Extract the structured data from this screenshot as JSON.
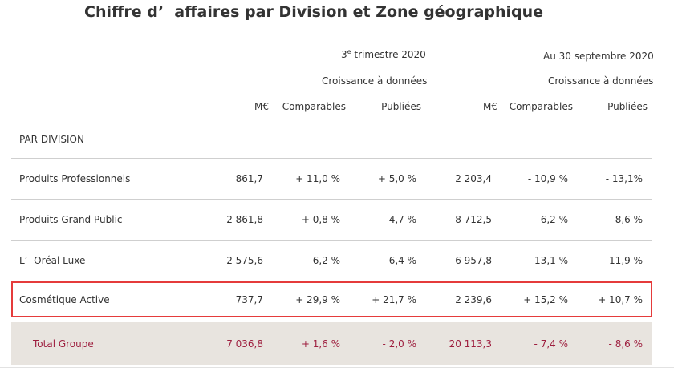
{
  "title": "Chiffre d’  affaires par Division et Zone géographique",
  "headers": {
    "period1": "trimestre 2020",
    "period1_num": "3",
    "period1_sup": "e",
    "period2": "Au 30 septembre 2020",
    "growth_label_1": "Croissance à données",
    "growth_label_2": "Croissance à données",
    "cols": [
      "M€",
      "Comparables",
      "Publiées",
      "M€",
      "Comparables",
      "Publiées"
    ]
  },
  "section": "PAR DIVISION",
  "rows": [
    {
      "label": "Produits Professionnels",
      "v": [
        "861,7",
        "+ 11,0 %",
        "+ 5,0 %",
        "2 203,4",
        "- 10,9 %",
        "- 13,1%"
      ]
    },
    {
      "label": "Produits Grand Public",
      "v": [
        "2 861,8",
        "+ 0,8 %",
        "- 4,7 %",
        "8 712,5",
        "- 6,2 %",
        "- 8,6 %"
      ]
    },
    {
      "label": "L’  Oréal Luxe",
      "v": [
        "2 575,6",
        "- 6,2 %",
        "- 6,4 %",
        "6 957,8",
        "- 13,1 %",
        "- 11,9 %"
      ]
    },
    {
      "label": "Cosmétique Active",
      "v": [
        "737,7",
        "+ 29,9 %",
        "+ 21,7 %",
        "2 239,6",
        "+ 15,2 %",
        "+ 10,7 %"
      ]
    }
  ],
  "total": {
    "label": "Total Groupe",
    "v": [
      "7 036,8",
      "+ 1,6 %",
      "- 2,0 %",
      "20 113,3",
      "- 7,4 %",
      "- 8,6 %"
    ]
  },
  "colors": {
    "total_text": "#9e1f3f",
    "total_bg": "#e8e4df",
    "highlight": "#e53b3b"
  }
}
